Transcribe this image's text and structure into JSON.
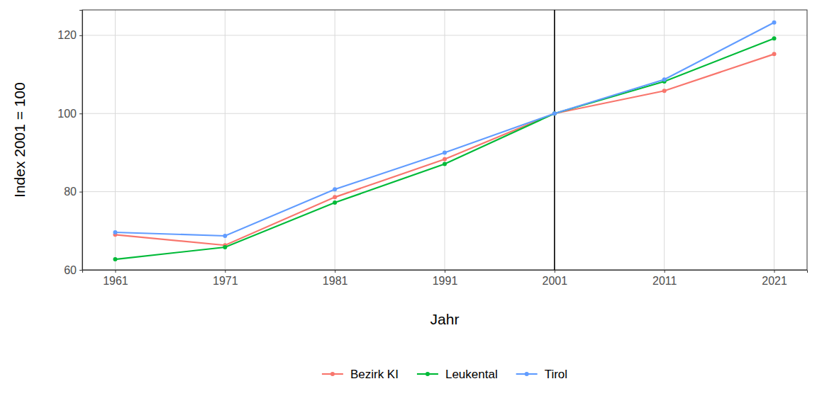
{
  "chart_data": {
    "type": "line",
    "x_label": "Jahr",
    "y_label": "Index 2001 = 100",
    "x": [
      1961,
      1971,
      1981,
      1991,
      2001,
      2011,
      2021
    ],
    "series": [
      {
        "name": "Bezirk KI",
        "color": "#F8766D",
        "marker": "circle",
        "values": [
          69.0,
          66.3,
          78.6,
          88.3,
          100,
          105.8,
          115.2
        ]
      },
      {
        "name": "Leukental",
        "color": "#00BA38",
        "marker": "circle",
        "values": [
          62.7,
          65.8,
          77.2,
          87.1,
          100,
          108.2,
          119.2
        ]
      },
      {
        "name": "Tirol",
        "color": "#619CFF",
        "marker": "circle",
        "values": [
          69.6,
          68.7,
          80.6,
          90.0,
          100,
          108.7,
          123.3
        ]
      }
    ],
    "xlim": [
      1958,
      2024
    ],
    "xticks": [
      1961,
      1971,
      1981,
      1991,
      2001,
      2011,
      2021
    ],
    "ylim": [
      60,
      126.5
    ],
    "yticks": [
      60,
      80,
      100,
      120
    ],
    "vline": 2001,
    "grid": true,
    "legend": "bottom"
  }
}
